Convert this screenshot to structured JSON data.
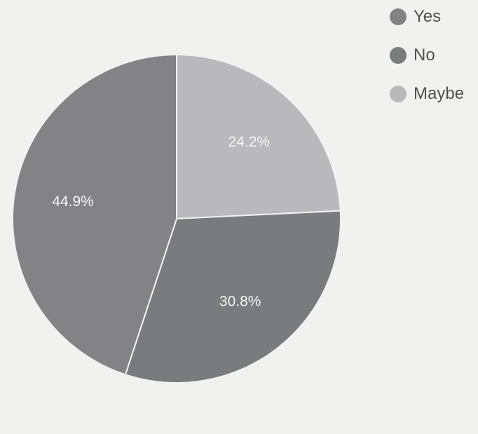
{
  "chart_data": {
    "type": "pie",
    "start_angle_deg": 0,
    "direction": "clockwise",
    "slices": [
      {
        "label": "Maybe",
        "value": 24.2,
        "display": "24.2%",
        "color": "#b9b9bb",
        "text_color": "#f4f4f4"
      },
      {
        "label": "No",
        "value": 30.8,
        "display": "30.8%",
        "color": "#7a7b7d",
        "text_color": "#f4f4f4"
      },
      {
        "label": "Yes",
        "value": 44.9,
        "display": "44.9%",
        "color": "#838385",
        "text_color": "#f4f4f4"
      }
    ],
    "legend": {
      "position": "top-right",
      "items": [
        {
          "label": "Yes",
          "color": "#838385"
        },
        {
          "label": "No",
          "color": "#7a7b7d"
        },
        {
          "label": "Maybe",
          "color": "#b9b9bb"
        }
      ]
    }
  }
}
